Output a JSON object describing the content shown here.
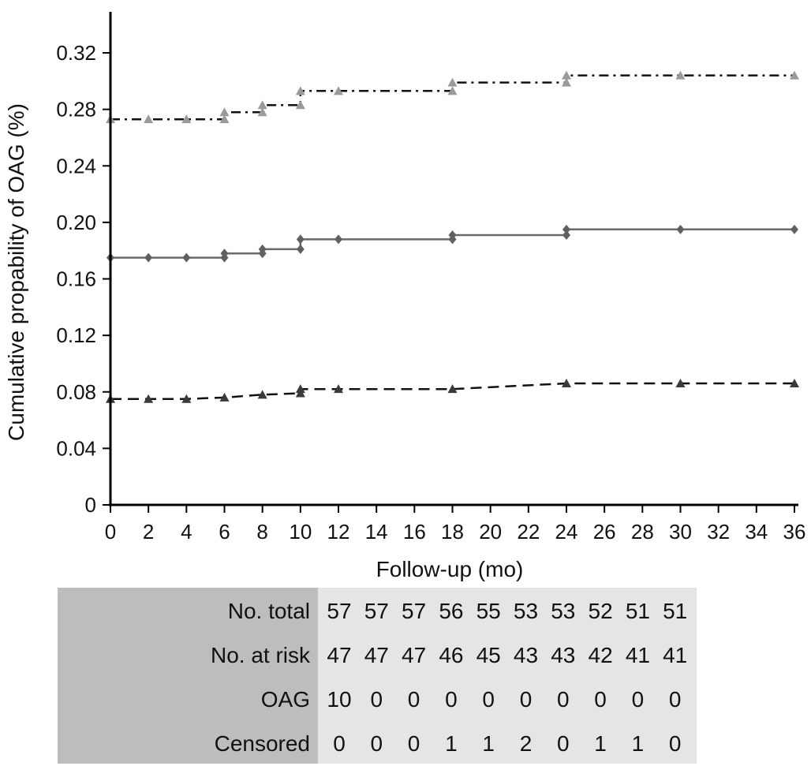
{
  "chart_data": {
    "type": "line",
    "title": "",
    "xlabel": "Follow-up (mo)",
    "ylabel": "Cumulative propability of OAG (%)",
    "xlim": [
      0,
      36
    ],
    "ylim": [
      0,
      0.35
    ],
    "x_ticks": [
      "0",
      "2",
      "4",
      "6",
      "8",
      "10",
      "12",
      "14",
      "16",
      "18",
      "20",
      "22",
      "24",
      "26",
      "28",
      "30",
      "32",
      "34",
      "36"
    ],
    "y_ticks": [
      "0",
      "0.04",
      "0.08",
      "0.12",
      "0.16",
      "0.20",
      "0.24",
      "0.28",
      "0.32"
    ],
    "grid": false,
    "series": [
      {
        "style": "dash-dot",
        "marker": "triangle",
        "color": "#9a9a9a",
        "points": [
          [
            0,
            0.273
          ],
          [
            2,
            0.273
          ],
          [
            4,
            0.273
          ],
          [
            6,
            0.273
          ],
          [
            6,
            0.278
          ],
          [
            8,
            0.278
          ],
          [
            8,
            0.283
          ],
          [
            10,
            0.283
          ],
          [
            10,
            0.293
          ],
          [
            12,
            0.293
          ],
          [
            18,
            0.293
          ],
          [
            18,
            0.299
          ],
          [
            24,
            0.299
          ],
          [
            24,
            0.304
          ],
          [
            30,
            0.304
          ],
          [
            36,
            0.304
          ]
        ]
      },
      {
        "style": "solid",
        "marker": "diamond",
        "color": "#606060",
        "points": [
          [
            0,
            0.175
          ],
          [
            2,
            0.175
          ],
          [
            4,
            0.175
          ],
          [
            6,
            0.175
          ],
          [
            6,
            0.178
          ],
          [
            8,
            0.178
          ],
          [
            8,
            0.181
          ],
          [
            10,
            0.181
          ],
          [
            10,
            0.188
          ],
          [
            12,
            0.188
          ],
          [
            18,
            0.188
          ],
          [
            18,
            0.191
          ],
          [
            24,
            0.191
          ],
          [
            24,
            0.195
          ],
          [
            30,
            0.195
          ],
          [
            36,
            0.195
          ]
        ]
      },
      {
        "style": "dashed",
        "marker": "triangle",
        "color": "#3a3a3a",
        "points": [
          [
            0,
            0.075
          ],
          [
            2,
            0.075
          ],
          [
            4,
            0.075
          ],
          [
            6,
            0.076
          ],
          [
            8,
            0.078
          ],
          [
            10,
            0.079
          ],
          [
            10,
            0.082
          ],
          [
            12,
            0.082
          ],
          [
            18,
            0.082
          ],
          [
            24,
            0.086
          ],
          [
            30,
            0.086
          ],
          [
            36,
            0.086
          ]
        ]
      }
    ]
  },
  "risk_table": {
    "rows": [
      {
        "label": "No. total",
        "values": [
          "57",
          "57",
          "57",
          "56",
          "55",
          "53",
          "53",
          "52",
          "51",
          "51"
        ]
      },
      {
        "label": "No. at risk",
        "values": [
          "47",
          "47",
          "47",
          "46",
          "45",
          "43",
          "43",
          "42",
          "41",
          "41"
        ]
      },
      {
        "label": "OAG",
        "values": [
          "10",
          "0",
          "0",
          "0",
          "0",
          "0",
          "0",
          "0",
          "0",
          "0"
        ]
      },
      {
        "label": "Censored",
        "values": [
          "0",
          "0",
          "0",
          "1",
          "1",
          "2",
          "0",
          "1",
          "1",
          "0"
        ]
      }
    ]
  }
}
